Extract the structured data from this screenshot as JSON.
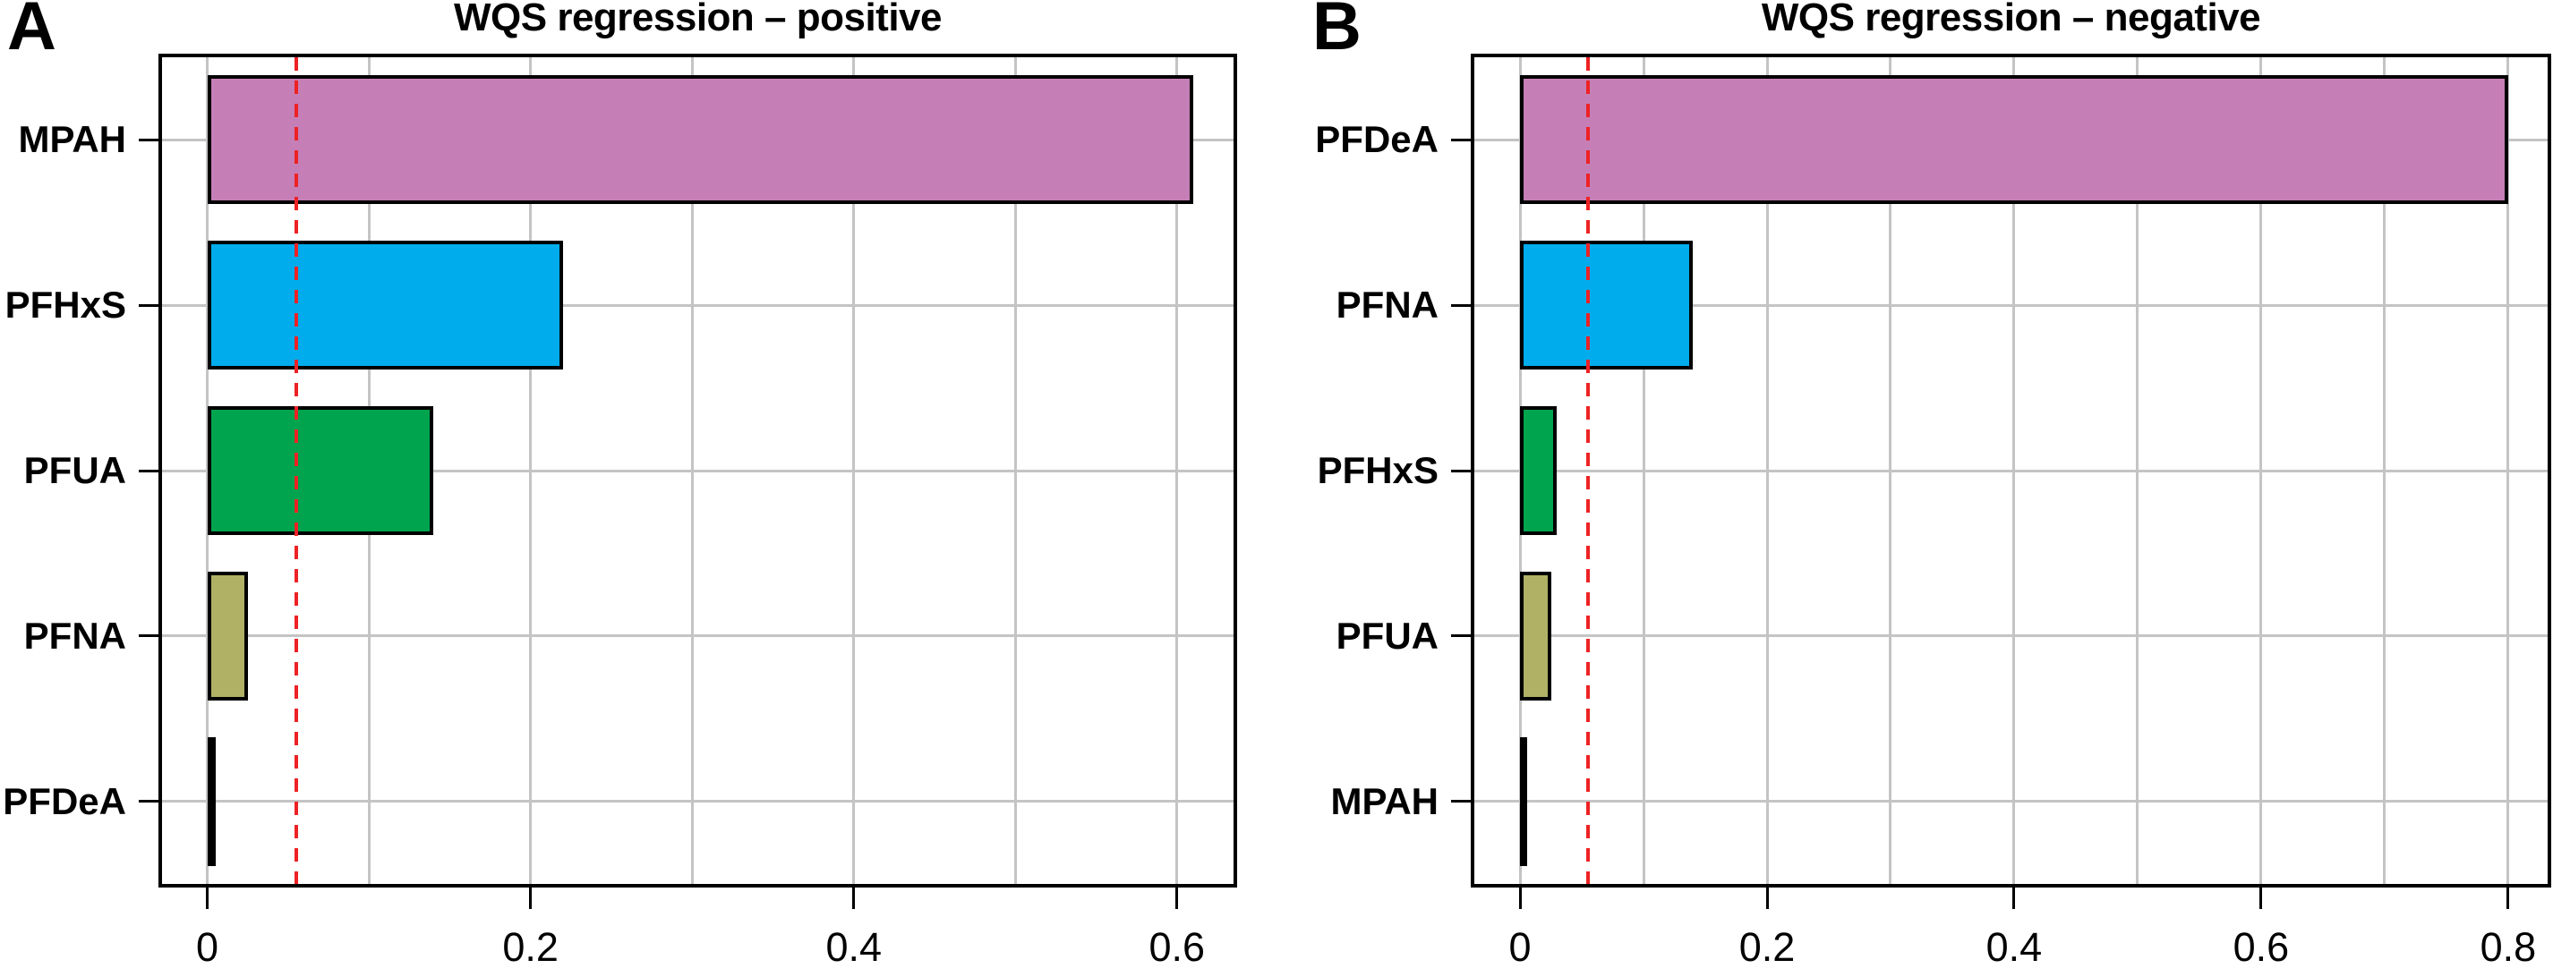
{
  "figure": {
    "background": "#ffffff",
    "grid_color": "#c4c4c4",
    "bar_outline_color": "#000000",
    "threshold_color": "#ed2224"
  },
  "chart_data": [
    {
      "type": "bar",
      "orientation": "horizontal",
      "panel_label": "A",
      "title": "WQS regression – positive",
      "categories": [
        "MPAH",
        "PFHxS",
        "PFUA",
        "PFNA",
        "PFDeA"
      ],
      "values": [
        0.61,
        0.22,
        0.14,
        0.025,
        0.005
      ],
      "bar_colors": [
        "#c67fb6",
        "#00acec",
        "#00a44f",
        "#b0b165",
        "#000000"
      ],
      "x_ticks": [
        0,
        0.2,
        0.4,
        0.6
      ],
      "x_tick_labels": [
        "0",
        "0.2",
        "0.4",
        "0.6"
      ],
      "xlim": [
        -0.028,
        0.635
      ],
      "gridline_interval": 0.1,
      "grid": "on",
      "legend": "none",
      "threshold_value": 0.055
    },
    {
      "type": "bar",
      "orientation": "horizontal",
      "panel_label": "B",
      "title": "WQS regression – negative",
      "categories": [
        "PFDeA",
        "PFNA",
        "PFHxS",
        "PFUA",
        "MPAH"
      ],
      "values": [
        0.8,
        0.14,
        0.03,
        0.025,
        0.005
      ],
      "bar_colors": [
        "#c67fb6",
        "#00acec",
        "#00a44f",
        "#b0b165",
        "#000000"
      ],
      "x_ticks": [
        0,
        0.2,
        0.4,
        0.6,
        0.8
      ],
      "x_tick_labels": [
        "0",
        "0.2",
        "0.4",
        "0.6",
        "0.8"
      ],
      "xlim": [
        -0.037,
        0.832
      ],
      "gridline_interval": 0.1,
      "grid": "on",
      "legend": "none",
      "threshold_value": 0.055
    }
  ]
}
